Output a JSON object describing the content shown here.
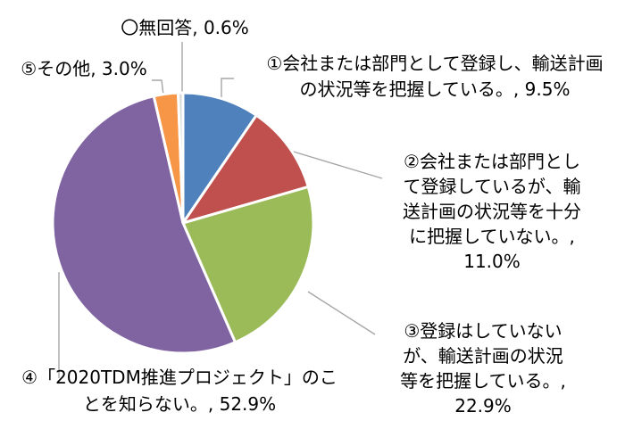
{
  "chart_data": {
    "type": "pie",
    "start_angle_deg": 0,
    "direction": "clockwise",
    "slices": [
      {
        "name": "①会社または部門として登録し、輸送計画の状況等を把握している。",
        "value": 9.5,
        "label": "9.5%",
        "color": "#4f81bd",
        "label_lines": [
          "①会社または部門として登録し、輸送計画",
          "の状況等を把握している。, 9.5%"
        ]
      },
      {
        "name": "②会社または部門として登録しているが、輸送計画の状況等を十分に把握していない。",
        "value": 11.0,
        "label": "11.0%",
        "color": "#c0504d",
        "label_lines": [
          "②会社または部門とし",
          "て登録しているが、輸",
          "送計画の状況等を十分",
          "に把握していない。,",
          "11.0%"
        ]
      },
      {
        "name": "③登録はしていないが、輸送計画の状況等を把握している。",
        "value": 22.9,
        "label": "22.9%",
        "color": "#9bbb59",
        "label_lines": [
          "③登録はしていない",
          "が、輸送計画の状況",
          "等を把握している。,",
          "22.9%"
        ]
      },
      {
        "name": "④「2020TDM推進プロジェクト」のことを知らない。",
        "value": 52.9,
        "label": "52.9%",
        "color": "#8064a2",
        "label_lines": [
          "④「2020TDM推進プロジェクト」のこ",
          "とを知らない。, 52.9%"
        ]
      },
      {
        "name": "⑤その他",
        "value": 3.0,
        "label": "3.0%",
        "color": "#f79646",
        "label_lines": [
          "⑤その他, 3.0%"
        ]
      },
      {
        "name": "〇無回答",
        "value": 0.6,
        "label": "0.6%",
        "color": "#d9d9d9",
        "label_lines": [
          "〇無回答, 0.6%"
        ]
      }
    ]
  }
}
